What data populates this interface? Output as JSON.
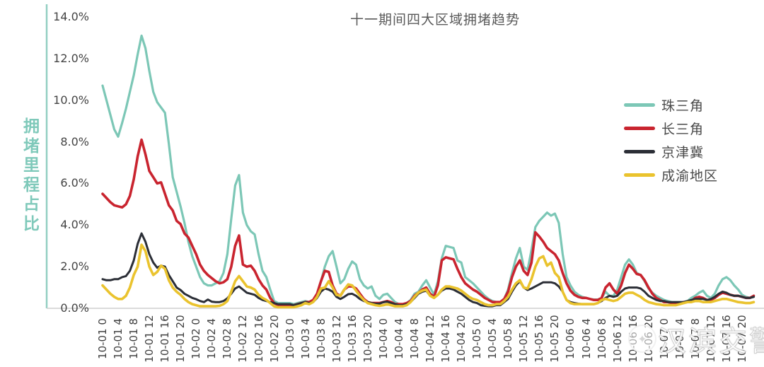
{
  "title": "十一期间四大区域拥堵趋势",
  "watermark": {
    "text": "汉滨交警",
    "icon": "police-badge-icon"
  },
  "colors": {
    "pearl_delta": "#7CC7B6",
    "yangtze_delta": "#C9242F",
    "jingjinji": "#2B2E36",
    "chengyu": "#EAC32E",
    "axis_line": "#93CFC2",
    "baseline": "#CFCFCF",
    "title_text": "#595959",
    "tick_text": "#404040",
    "y_axis_title_text": "#7FC9BA"
  },
  "chart_data": {
    "type": "line",
    "title": "十一期间四大区域拥堵趋势",
    "xlabel": "",
    "ylabel": "拥堵里程占比",
    "ylim": [
      0,
      14
    ],
    "grid": false,
    "legend_position": "right",
    "x_resolution": "hourly, 10-01 0:00 through 10-07 23:00 (168 points per series)",
    "y_ticks": [
      "0.0%",
      "2.0%",
      "4.0%",
      "6.0%",
      "8.0%",
      "10.0%",
      "12.0%",
      "14.0%"
    ],
    "x_tick_labels": [
      "10-01 0",
      "10-01 4",
      "10-01 8",
      "10-01 12",
      "10-01 16",
      "10-01 20",
      "10-02 0",
      "10-02 4",
      "10-02 8",
      "10-02 12",
      "10-02 16",
      "10-02 20",
      "10-03 0",
      "10-03 4",
      "10-03 8",
      "10-03 12",
      "10-03 16",
      "10-03 20",
      "10-04 0",
      "10-04 4",
      "10-04 8",
      "10-04 12",
      "10-04 16",
      "10-04 20",
      "10-05 0",
      "10-05 4",
      "10-05 8",
      "10-05 12",
      "10-05 16",
      "10-05 20",
      "10-06 0",
      "10-06 4",
      "10-06 8",
      "10-06 12",
      "10-06 16",
      "10-06 20",
      "10-07 0",
      "10-07 4",
      "10-07 8",
      "10-07 12",
      "10-07 16",
      "10-07 20"
    ],
    "series": [
      {
        "name": "珠三角",
        "color": "#7CC7B6",
        "values": [
          10.7,
          10.0,
          9.3,
          8.6,
          8.25,
          8.9,
          9.6,
          10.4,
          11.2,
          12.2,
          13.1,
          12.5,
          11.4,
          10.4,
          9.9,
          9.65,
          9.4,
          7.9,
          6.3,
          5.6,
          4.9,
          4.1,
          3.2,
          2.5,
          2.0,
          1.5,
          1.2,
          1.1,
          1.1,
          1.2,
          1.3,
          1.7,
          2.6,
          4.3,
          5.9,
          6.4,
          4.6,
          4.0,
          3.7,
          3.55,
          2.6,
          1.8,
          1.5,
          0.9,
          0.35,
          0.25,
          0.25,
          0.25,
          0.25,
          0.2,
          0.25,
          0.3,
          0.35,
          0.3,
          0.4,
          0.7,
          1.3,
          2.0,
          2.5,
          2.75,
          2.0,
          1.2,
          1.4,
          1.9,
          2.25,
          2.1,
          1.4,
          1.1,
          0.95,
          1.05,
          0.6,
          0.45,
          0.65,
          0.7,
          0.5,
          0.3,
          0.2,
          0.2,
          0.25,
          0.4,
          0.7,
          0.8,
          1.1,
          1.35,
          1.0,
          0.65,
          1.3,
          2.4,
          3.0,
          2.95,
          2.9,
          2.3,
          2.2,
          1.5,
          1.35,
          1.2,
          1.0,
          0.8,
          0.6,
          0.45,
          0.35,
          0.3,
          0.3,
          0.45,
          0.9,
          1.7,
          2.4,
          2.9,
          2.0,
          1.85,
          2.8,
          3.9,
          4.2,
          4.4,
          4.6,
          4.45,
          4.55,
          4.1,
          2.6,
          1.5,
          1.1,
          0.8,
          0.65,
          0.55,
          0.5,
          0.45,
          0.42,
          0.42,
          0.5,
          0.8,
          0.6,
          0.6,
          0.9,
          1.5,
          2.1,
          2.35,
          2.1,
          1.7,
          1.6,
          1.3,
          0.95,
          0.75,
          0.6,
          0.5,
          0.4,
          0.35,
          0.3,
          0.3,
          0.3,
          0.3,
          0.35,
          0.5,
          0.6,
          0.75,
          0.85,
          0.6,
          0.5,
          0.7,
          1.1,
          1.4,
          1.5,
          1.35,
          1.1,
          0.9,
          0.65,
          0.55,
          0.5,
          0.55
        ]
      },
      {
        "name": "长三角",
        "color": "#C9242F",
        "values": [
          5.5,
          5.3,
          5.1,
          4.95,
          4.9,
          4.85,
          5.0,
          5.4,
          6.2,
          7.3,
          8.1,
          7.4,
          6.6,
          6.3,
          6.0,
          6.05,
          5.5,
          4.95,
          4.7,
          4.2,
          4.05,
          3.6,
          3.4,
          3.0,
          2.6,
          2.1,
          1.8,
          1.6,
          1.45,
          1.3,
          1.2,
          1.25,
          1.4,
          2.0,
          3.0,
          3.5,
          2.1,
          2.0,
          2.05,
          1.8,
          1.4,
          1.1,
          0.9,
          0.5,
          0.25,
          0.15,
          0.15,
          0.15,
          0.15,
          0.15,
          0.2,
          0.25,
          0.3,
          0.3,
          0.4,
          0.7,
          1.3,
          1.8,
          1.75,
          1.1,
          0.7,
          0.6,
          0.9,
          1.05,
          1.05,
          0.95,
          0.7,
          0.45,
          0.3,
          0.25,
          0.25,
          0.25,
          0.3,
          0.35,
          0.3,
          0.2,
          0.2,
          0.2,
          0.25,
          0.35,
          0.6,
          0.75,
          0.9,
          1.0,
          0.7,
          0.55,
          1.1,
          2.3,
          2.45,
          2.4,
          2.35,
          1.9,
          1.5,
          1.2,
          1.05,
          0.9,
          0.8,
          0.65,
          0.5,
          0.4,
          0.3,
          0.3,
          0.3,
          0.45,
          0.8,
          1.5,
          2.0,
          2.3,
          1.8,
          1.6,
          2.2,
          3.65,
          3.45,
          3.2,
          2.9,
          2.75,
          2.6,
          2.3,
          1.7,
          1.2,
          0.85,
          0.65,
          0.55,
          0.5,
          0.5,
          0.45,
          0.4,
          0.4,
          0.5,
          1.0,
          1.2,
          0.9,
          0.7,
          1.1,
          1.7,
          2.1,
          1.9,
          1.65,
          1.6,
          1.35,
          1.0,
          0.7,
          0.5,
          0.4,
          0.3,
          0.3,
          0.25,
          0.25,
          0.25,
          0.3,
          0.3,
          0.35,
          0.5,
          0.55,
          0.5,
          0.4,
          0.4,
          0.5,
          0.65,
          0.75,
          0.7,
          0.65,
          0.6,
          0.6,
          0.55,
          0.5,
          0.5,
          0.6
        ]
      },
      {
        "name": "京津冀",
        "color": "#2B2E36",
        "values": [
          1.4,
          1.35,
          1.35,
          1.4,
          1.4,
          1.5,
          1.55,
          1.8,
          2.3,
          3.1,
          3.6,
          3.2,
          2.6,
          2.2,
          1.95,
          2.05,
          2.0,
          1.6,
          1.3,
          1.0,
          0.88,
          0.7,
          0.6,
          0.5,
          0.44,
          0.35,
          0.3,
          0.42,
          0.32,
          0.3,
          0.3,
          0.35,
          0.48,
          0.7,
          0.95,
          1.05,
          0.9,
          0.75,
          0.7,
          0.65,
          0.5,
          0.4,
          0.35,
          0.3,
          0.25,
          0.2,
          0.2,
          0.2,
          0.2,
          0.15,
          0.2,
          0.25,
          0.3,
          0.25,
          0.3,
          0.5,
          0.8,
          0.95,
          0.9,
          0.8,
          0.55,
          0.45,
          0.55,
          0.68,
          0.7,
          0.6,
          0.45,
          0.35,
          0.3,
          0.25,
          0.22,
          0.22,
          0.3,
          0.32,
          0.25,
          0.2,
          0.15,
          0.15,
          0.2,
          0.3,
          0.5,
          0.7,
          0.8,
          0.85,
          0.6,
          0.5,
          0.65,
          0.85,
          0.95,
          0.95,
          0.9,
          0.8,
          0.7,
          0.55,
          0.4,
          0.3,
          0.25,
          0.15,
          0.12,
          0.1,
          0.1,
          0.15,
          0.15,
          0.3,
          0.45,
          0.8,
          1.1,
          1.3,
          1.0,
          0.88,
          0.95,
          1.05,
          1.15,
          1.25,
          1.25,
          1.25,
          1.2,
          1.05,
          0.8,
          0.4,
          0.3,
          0.25,
          0.22,
          0.2,
          0.2,
          0.2,
          0.2,
          0.25,
          0.35,
          0.5,
          0.6,
          0.55,
          0.6,
          0.8,
          0.95,
          1.0,
          1.0,
          1.0,
          0.95,
          0.8,
          0.6,
          0.5,
          0.4,
          0.35,
          0.35,
          0.3,
          0.3,
          0.3,
          0.3,
          0.3,
          0.35,
          0.4,
          0.45,
          0.45,
          0.45,
          0.4,
          0.45,
          0.55,
          0.7,
          0.8,
          0.75,
          0.65,
          0.6,
          0.6,
          0.55,
          0.5,
          0.5,
          0.55
        ]
      },
      {
        "name": "成渝地区",
        "color": "#EAC32E",
        "values": [
          1.1,
          0.9,
          0.7,
          0.55,
          0.45,
          0.45,
          0.6,
          1.0,
          1.6,
          2.0,
          3.05,
          2.75,
          2.0,
          1.6,
          1.75,
          2.05,
          1.9,
          1.35,
          1.0,
          0.8,
          0.65,
          0.45,
          0.3,
          0.2,
          0.15,
          0.1,
          0.1,
          0.1,
          0.1,
          0.1,
          0.12,
          0.2,
          0.35,
          0.8,
          1.3,
          1.55,
          1.3,
          1.05,
          1.0,
          0.9,
          0.65,
          0.5,
          0.4,
          0.25,
          0.1,
          0.05,
          0.05,
          0.05,
          0.05,
          0.05,
          0.1,
          0.15,
          0.25,
          0.2,
          0.3,
          0.55,
          0.95,
          1.0,
          1.3,
          1.0,
          0.65,
          0.6,
          0.9,
          1.15,
          1.1,
          0.85,
          0.6,
          0.4,
          0.25,
          0.2,
          0.15,
          0.12,
          0.15,
          0.2,
          0.15,
          0.1,
          0.1,
          0.1,
          0.15,
          0.3,
          0.55,
          0.75,
          0.85,
          0.9,
          0.6,
          0.5,
          0.65,
          0.9,
          1.05,
          1.05,
          1.0,
          0.95,
          0.85,
          0.7,
          0.55,
          0.45,
          0.4,
          0.3,
          0.2,
          0.15,
          0.15,
          0.2,
          0.2,
          0.35,
          0.55,
          0.9,
          1.2,
          1.35,
          1.0,
          0.95,
          1.4,
          2.0,
          2.4,
          2.5,
          2.05,
          2.2,
          1.7,
          1.5,
          0.8,
          0.4,
          0.25,
          0.2,
          0.2,
          0.2,
          0.2,
          0.2,
          0.2,
          0.25,
          0.4,
          0.45,
          0.4,
          0.35,
          0.4,
          0.55,
          0.7,
          0.75,
          0.75,
          0.65,
          0.55,
          0.4,
          0.3,
          0.25,
          0.2,
          0.18,
          0.15,
          0.15,
          0.15,
          0.15,
          0.2,
          0.25,
          0.3,
          0.3,
          0.35,
          0.35,
          0.3,
          0.3,
          0.3,
          0.35,
          0.4,
          0.45,
          0.45,
          0.4,
          0.35,
          0.3,
          0.28,
          0.25,
          0.25,
          0.3
        ]
      }
    ]
  }
}
